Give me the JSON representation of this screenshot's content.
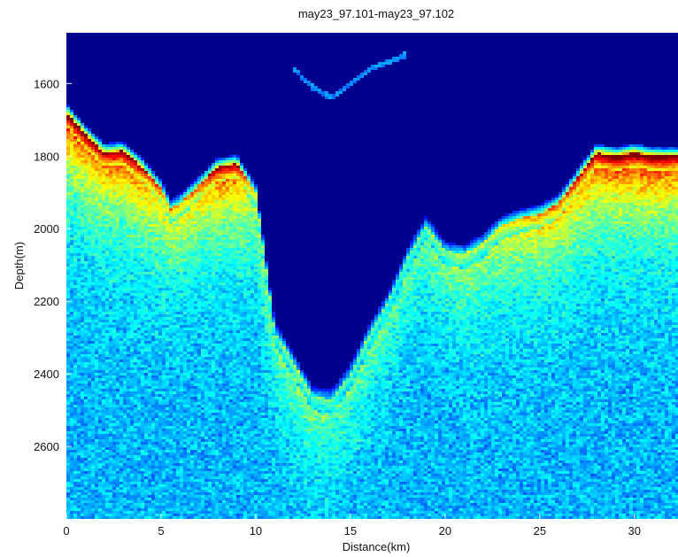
{
  "chart_data": {
    "type": "heatmap",
    "title": "may23_97.101-may23_97.102",
    "xlabel": "Distance(km)",
    "ylabel": "Depth(m)",
    "xlim": [
      0,
      32.3
    ],
    "ylim": [
      1460,
      2800
    ],
    "y_reversed": true,
    "x_ticks": [
      0,
      5,
      10,
      15,
      20,
      25,
      30
    ],
    "y_ticks": [
      1600,
      1800,
      2000,
      2200,
      2400,
      2600
    ],
    "colormap": "jet",
    "grid": false,
    "bottom_echo_profile": {
      "x": [
        0,
        1,
        2,
        3,
        4,
        5,
        5.5,
        6,
        7,
        8,
        9,
        10,
        11,
        12,
        13,
        14,
        15,
        16,
        17,
        18,
        19,
        20,
        21,
        22,
        23,
        24,
        25,
        26,
        27,
        28,
        29,
        30,
        31,
        32.3
      ],
      "depth": [
        1680,
        1740,
        1790,
        1785,
        1830,
        1890,
        1945,
        1930,
        1880,
        1830,
        1820,
        1900,
        2280,
        2370,
        2460,
        2470,
        2400,
        2290,
        2200,
        2080,
        1990,
        2060,
        2070,
        2040,
        1990,
        1970,
        1960,
        1930,
        1860,
        1790,
        1800,
        1790,
        1800,
        1800
      ],
      "strength": [
        1.0,
        0.95,
        0.9,
        0.95,
        0.85,
        0.7,
        0.6,
        0.6,
        0.7,
        0.9,
        0.9,
        0.5,
        0.35,
        0.4,
        0.4,
        0.35,
        0.35,
        0.35,
        0.35,
        0.35,
        0.4,
        0.4,
        0.45,
        0.45,
        0.55,
        0.6,
        0.65,
        0.7,
        0.8,
        0.95,
        1.0,
        1.0,
        1.0,
        0.95
      ]
    },
    "shallow_reflector": {
      "x": [
        12,
        13,
        14,
        15,
        16,
        18
      ],
      "depth": [
        1560,
        1610,
        1640,
        1600,
        1560,
        1520
      ]
    },
    "colors": {
      "background": "#00008f",
      "weak": "#0050ff",
      "medium": "#00c8ff",
      "strong": "#ffff00",
      "peak": "#ff2000"
    }
  }
}
